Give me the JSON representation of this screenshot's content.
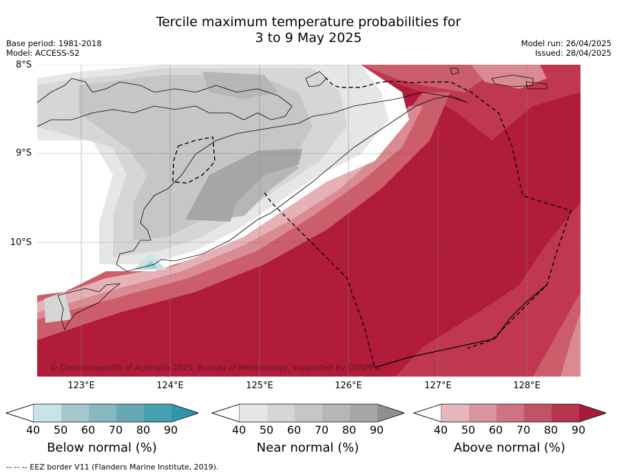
{
  "title": {
    "line1": "Tercile maximum temperature probabilities for",
    "line2": "3 to 9 May 2025"
  },
  "meta_left": {
    "base_period": "Base period: 1981-2018",
    "model": "Model: ACCESS-S2"
  },
  "meta_right": {
    "model_run": "Model run: 26/04/2025",
    "issued": "Issued: 28/04/2025"
  },
  "map": {
    "lat_labels": [
      "8°S",
      "9°S",
      "10°S"
    ],
    "lon_labels": [
      "123°E",
      "124°E",
      "125°E",
      "126°E",
      "127°E",
      "128°E"
    ],
    "copyright": "© Commonwealth of Australia 2025, Bureau of Meteorology, supported by COSPPac",
    "colors": {
      "above_90": "#b01c3a",
      "above_80": "#c0384f",
      "above_70": "#cc5e6b",
      "above_60": "#d98a92",
      "above_50": "#e6b1b6",
      "near_40": "#e6e6e6",
      "near_50": "#d6d6d6",
      "near_60": "#c6c6c6",
      "near_70": "#b6b6b6",
      "near_80": "#a6a6a6",
      "below_40": "#c9e3e8",
      "below_50": "#a3ccd4"
    }
  },
  "colorbars": [
    {
      "id": "below",
      "title": "Below normal (%)",
      "ticks": [
        "40",
        "50",
        "60",
        "70",
        "80",
        "90"
      ],
      "colors": [
        "#c9e3e8",
        "#a5c7cd",
        "#88b7c0",
        "#68a8b5",
        "#47a0b0",
        "#2e95ad"
      ]
    },
    {
      "id": "near",
      "title": "Near normal (%)",
      "ticks": [
        "40",
        "50",
        "60",
        "70",
        "80",
        "90"
      ],
      "colors": [
        "#e6e6e6",
        "#d6d6d6",
        "#c6c6c6",
        "#b6b6b6",
        "#a6a6a6",
        "#8e8e8e"
      ]
    },
    {
      "id": "above",
      "title": "Above normal (%)",
      "ticks": [
        "40",
        "50",
        "60",
        "70",
        "80",
        "90"
      ],
      "colors": [
        "#e6b6bd",
        "#d9969e",
        "#cc7480",
        "#c05466",
        "#b5354e",
        "#a81a3a"
      ]
    }
  ],
  "footer": "--  --  -- EEZ border V11 (Flanders Marine Institute, 2019)."
}
